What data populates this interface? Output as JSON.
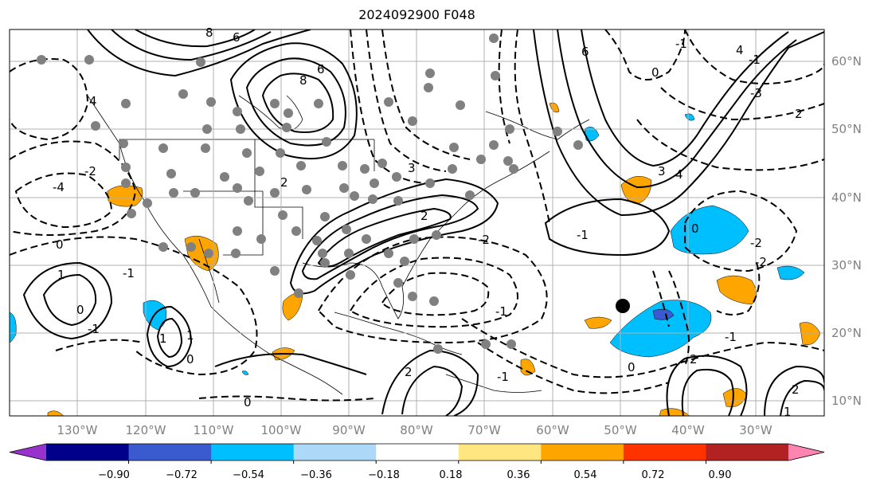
{
  "title": "2024092900 F048",
  "lat_labels": [
    "60°N",
    "50°N",
    "40°N",
    "30°N",
    "20°N",
    "10°N"
  ],
  "lon_labels": [
    "130°W",
    "120°W",
    "110°W",
    "100°W",
    "90°W",
    "80°W",
    "70°W",
    "60°W",
    "50°W",
    "40°W",
    "30°W"
  ],
  "colorbar": {
    "ticks": [
      "−0.90",
      "−0.72",
      "−0.54",
      "−0.36",
      "−0.18",
      "0.18",
      "0.36",
      "0.54",
      "0.72",
      "0.90"
    ],
    "colors": [
      "#9932cc",
      "#00008b",
      "#3a5bd0",
      "#00bfff",
      "#add8f7",
      "#ffffff",
      "#ffe680",
      "#ffa500",
      "#ff3300",
      "#b22222",
      "#ff85b0"
    ]
  },
  "contour_labels": [
    "8",
    "6",
    "8",
    "6",
    "6",
    "4",
    "2",
    "0",
    "-1",
    "-3",
    "-4",
    "-2",
    "0",
    "1",
    "2",
    "3",
    "4",
    "-1",
    "0",
    "-2",
    "-1",
    "0",
    "-1",
    "1",
    "2",
    "-1",
    "0",
    "-2",
    "-1",
    "-1",
    "0",
    "2",
    "1",
    "4",
    "3",
    "-2",
    "2",
    "1",
    "2",
    "0",
    "-1"
  ],
  "storm_marker": "tropical-cyclone-position"
}
